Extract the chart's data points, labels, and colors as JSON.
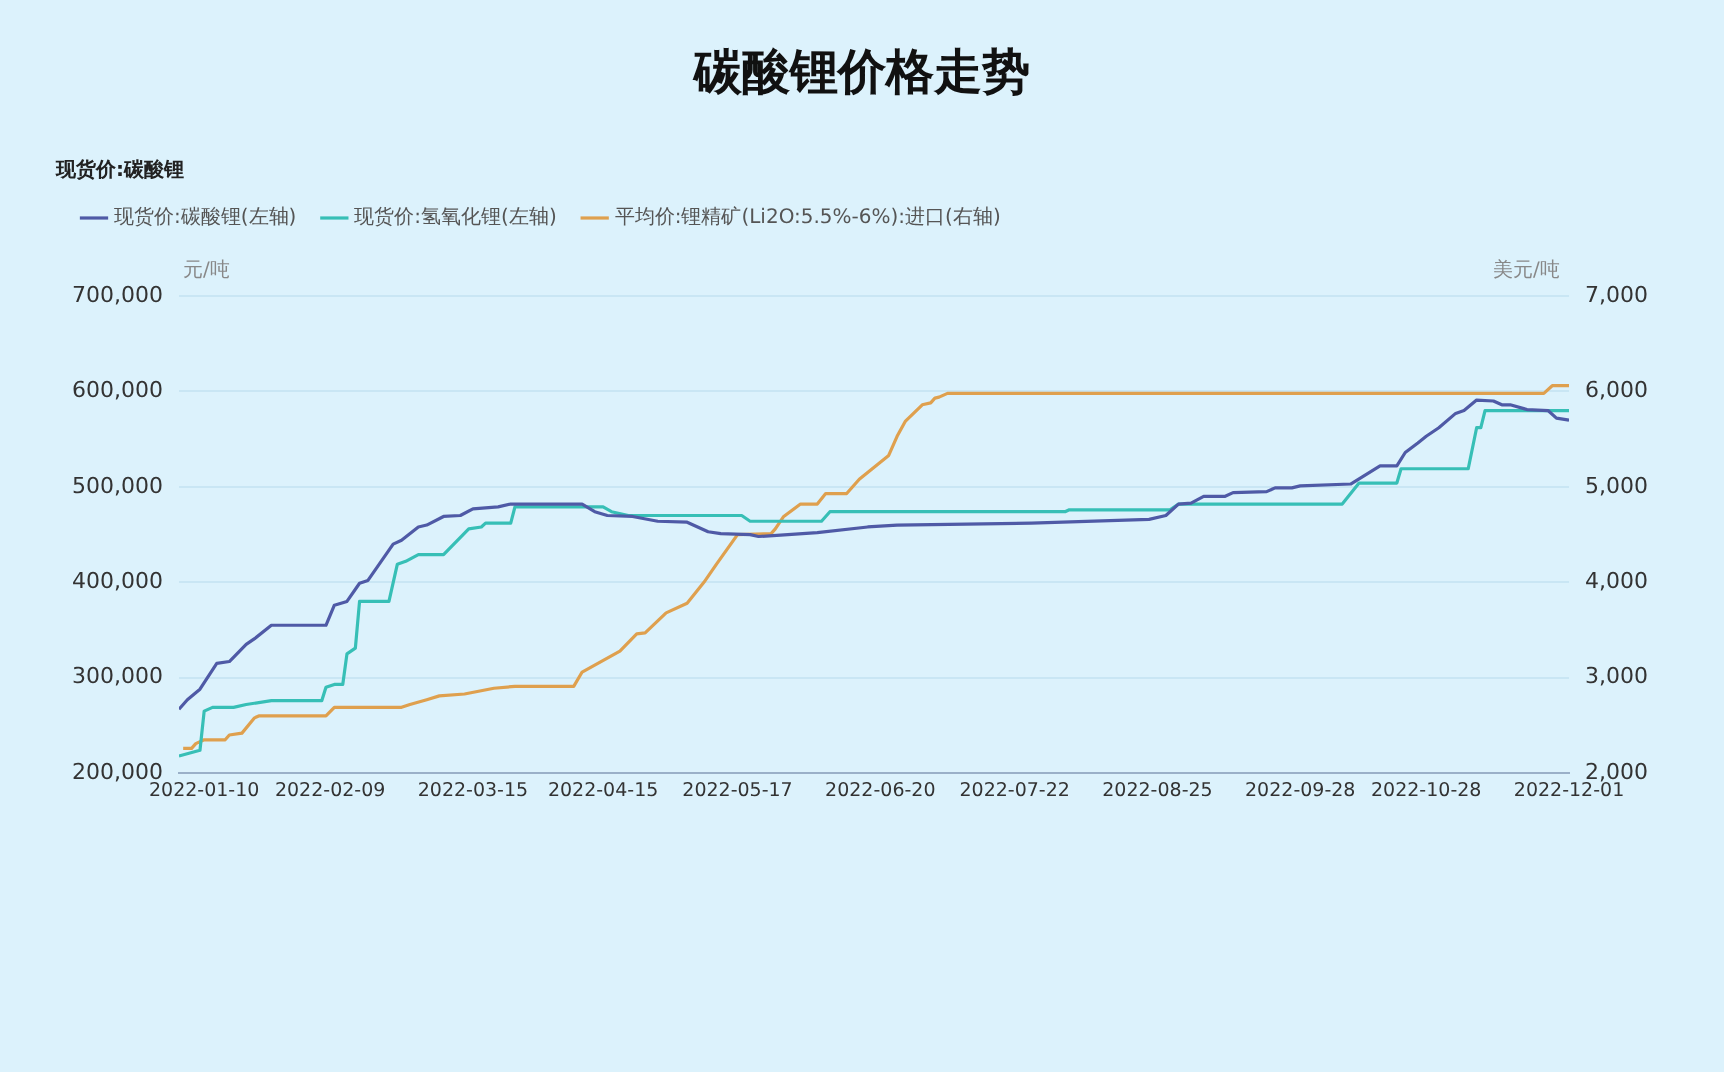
{
  "chart_data": {
    "type": "line",
    "title": "碳酸锂价格走势",
    "subtitle": "现货价:碳酸锂",
    "ylabel": "元/吨",
    "y2label": "美元/吨",
    "xlim": [
      "2022-01-04",
      "2022-12-01"
    ],
    "xticks": [
      "2022-01-10",
      "2022-02-09",
      "2022-03-15",
      "2022-04-15",
      "2022-05-17",
      "2022-06-20",
      "2022-07-22",
      "2022-08-25",
      "2022-09-28",
      "2022-10-28",
      "2022-12-01"
    ],
    "ylim": [
      200000,
      700000
    ],
    "yticks": [
      {
        "value": 200000,
        "label": "200,000"
      },
      {
        "value": 300000,
        "label": "300,000"
      },
      {
        "value": 400000,
        "label": "400,000"
      },
      {
        "value": 500000,
        "label": "500,000"
      },
      {
        "value": 600000,
        "label": "600,000"
      },
      {
        "value": 700000,
        "label": "700,000"
      }
    ],
    "y2lim": [
      2000,
      7000
    ],
    "y2ticks": [
      {
        "value": 2000,
        "label": "2,000"
      },
      {
        "value": 3000,
        "label": "3,000"
      },
      {
        "value": 4000,
        "label": "4,000"
      },
      {
        "value": 5000,
        "label": "5,000"
      },
      {
        "value": 6000,
        "label": "6,000"
      },
      {
        "value": 7000,
        "label": "7,000"
      }
    ],
    "grid": "y",
    "legend": "top left",
    "marker": "none",
    "series": [
      {
        "name": "现货价:碳酸锂(左轴)",
        "color": "#4f5aa6",
        "x": [
          "2022-01-04",
          "2022-01-06",
          "2022-01-09",
          "2022-01-13",
          "2022-01-16",
          "2022-01-20",
          "2022-01-22",
          "2022-01-26",
          "2022-02-08",
          "2022-02-10",
          "2022-02-13",
          "2022-02-16",
          "2022-02-18",
          "2022-02-24",
          "2022-02-26",
          "2022-03-02",
          "2022-03-04",
          "2022-03-08",
          "2022-03-12",
          "2022-03-15",
          "2022-03-21",
          "2022-03-24",
          "2022-04-10",
          "2022-04-13",
          "2022-04-16",
          "2022-04-22",
          "2022-04-28",
          "2022-05-05",
          "2022-05-10",
          "2022-05-13",
          "2022-05-20",
          "2022-05-22",
          "2022-05-29",
          "2022-06-05",
          "2022-06-17",
          "2022-06-24",
          "2022-07-26",
          "2022-08-23",
          "2022-08-27",
          "2022-08-30",
          "2022-09-02",
          "2022-09-05",
          "2022-09-10",
          "2022-09-12",
          "2022-09-20",
          "2022-09-22",
          "2022-09-26",
          "2022-09-28",
          "2022-10-10",
          "2022-10-17",
          "2022-10-21",
          "2022-10-23",
          "2022-10-26",
          "2022-10-28",
          "2022-10-31",
          "2022-11-04",
          "2022-11-06",
          "2022-11-09",
          "2022-11-13",
          "2022-11-15",
          "2022-11-17",
          "2022-11-21",
          "2022-11-26",
          "2022-11-28",
          "2022-12-01"
        ],
        "values": [
          267000,
          277000,
          288000,
          315000,
          317000,
          335000,
          341000,
          355000,
          355000,
          376000,
          380000,
          399000,
          402000,
          440000,
          444000,
          458000,
          460000,
          469000,
          470000,
          477000,
          479000,
          482000,
          482000,
          474000,
          470000,
          469000,
          464000,
          463000,
          453000,
          451000,
          450000,
          448000,
          450000,
          452000,
          458000,
          460000,
          462000,
          466000,
          470000,
          482000,
          483000,
          490000,
          490000,
          494000,
          495000,
          499000,
          499000,
          501000,
          503000,
          522000,
          522000,
          536000,
          546000,
          553000,
          562000,
          577000,
          580000,
          591000,
          590000,
          586000,
          586000,
          581000,
          580000,
          572000,
          570000
        ]
      },
      {
        "name": "现货价:氢氧化锂(左轴)",
        "color": "#37bfb6",
        "x": [
          "2022-01-04",
          "2022-01-09",
          "2022-01-10",
          "2022-01-12",
          "2022-01-17",
          "2022-01-20",
          "2022-01-26",
          "2022-02-07",
          "2022-02-08",
          "2022-02-10",
          "2022-02-12",
          "2022-02-13",
          "2022-02-15",
          "2022-02-16",
          "2022-02-23",
          "2022-02-25",
          "2022-02-27",
          "2022-03-02",
          "2022-03-08",
          "2022-03-14",
          "2022-03-17",
          "2022-03-18",
          "2022-03-24",
          "2022-03-25",
          "2022-04-15",
          "2022-04-17",
          "2022-04-21",
          "2022-05-18",
          "2022-05-20",
          "2022-06-06",
          "2022-06-08",
          "2022-08-03",
          "2022-08-04",
          "2022-08-28",
          "2022-08-30",
          "2022-10-08",
          "2022-10-12",
          "2022-10-21",
          "2022-10-22",
          "2022-11-07",
          "2022-11-09",
          "2022-11-10",
          "2022-11-11",
          "2022-12-01"
        ],
        "values": [
          218000,
          224000,
          265000,
          269000,
          269000,
          272000,
          276000,
          276000,
          290000,
          293000,
          293000,
          325000,
          331000,
          380000,
          380000,
          419000,
          422000,
          429000,
          429000,
          456000,
          458000,
          462000,
          462000,
          479000,
          479000,
          474000,
          470000,
          470000,
          464000,
          464000,
          474000,
          474000,
          476000,
          476000,
          482000,
          482000,
          504000,
          504000,
          519000,
          519000,
          562000,
          562000,
          580000,
          580000
        ]
      },
      {
        "name": "平均价:锂精矿(Li2O:5.5%-6%):进口(右轴)",
        "color": "#dfa04e",
        "axis": "y2",
        "x": [
          "2022-01-05",
          "2022-01-07",
          "2022-01-08",
          "2022-01-10",
          "2022-01-15",
          "2022-01-16",
          "2022-01-19",
          "2022-01-22",
          "2022-01-23",
          "2022-02-08",
          "2022-02-10",
          "2022-02-26",
          "2022-02-28",
          "2022-03-04",
          "2022-03-07",
          "2022-03-13",
          "2022-03-20",
          "2022-03-25",
          "2022-04-08",
          "2022-04-10",
          "2022-04-19",
          "2022-04-23",
          "2022-04-25",
          "2022-04-30",
          "2022-05-05",
          "2022-05-09",
          "2022-05-12",
          "2022-05-17",
          "2022-05-25",
          "2022-05-26",
          "2022-05-28",
          "2022-06-01",
          "2022-06-05",
          "2022-06-07",
          "2022-06-12",
          "2022-06-15",
          "2022-06-22",
          "2022-06-24",
          "2022-06-26",
          "2022-06-30",
          "2022-07-02",
          "2022-07-03",
          "2022-07-04",
          "2022-07-06",
          "2022-11-25",
          "2022-11-27",
          "2022-12-01"
        ],
        "values": [
          2260,
          2260,
          2310,
          2350,
          2350,
          2400,
          2420,
          2580,
          2600,
          2600,
          2690,
          2690,
          2720,
          2770,
          2810,
          2830,
          2890,
          2910,
          2910,
          3060,
          3280,
          3460,
          3470,
          3680,
          3780,
          4000,
          4190,
          4500,
          4510,
          4560,
          4690,
          4820,
          4820,
          4930,
          4930,
          5080,
          5330,
          5530,
          5690,
          5860,
          5880,
          5930,
          5940,
          5980,
          5980,
          6060,
          6060
        ]
      }
    ]
  }
}
